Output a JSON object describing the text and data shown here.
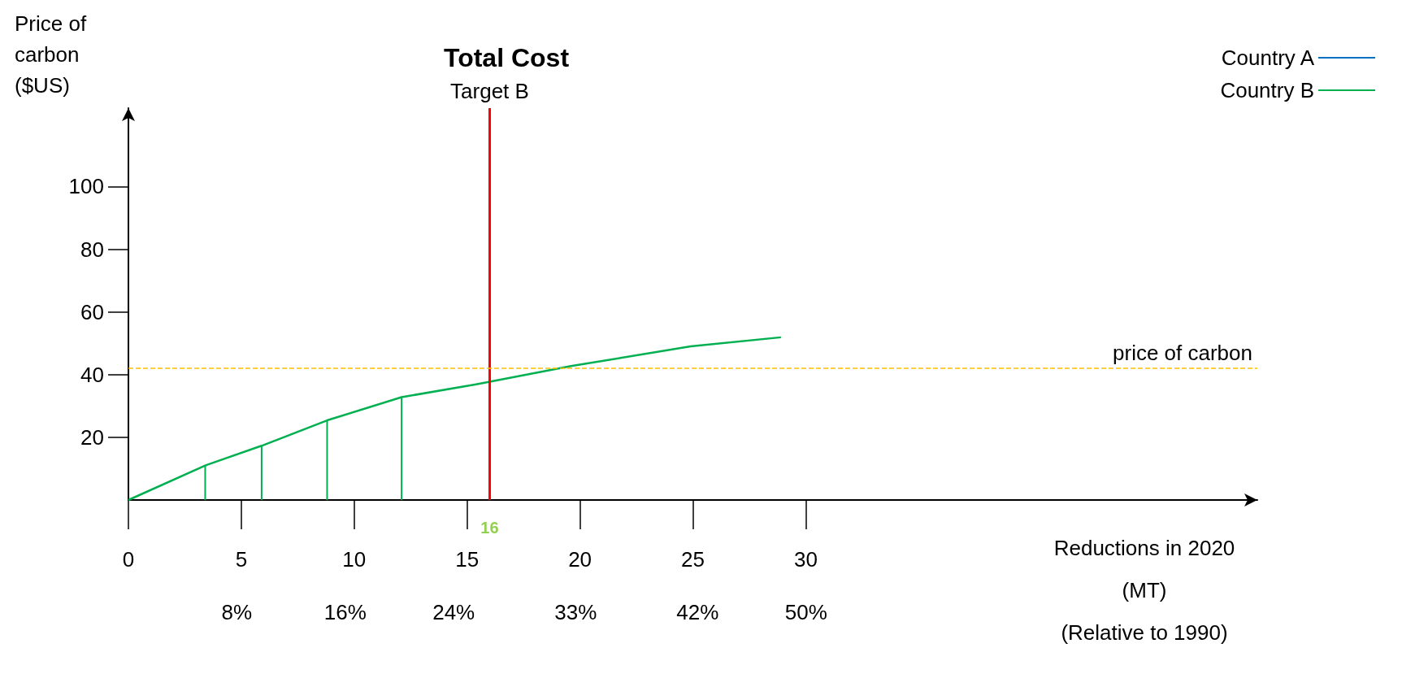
{
  "chart_data": {
    "type": "line",
    "title": "Total Cost",
    "xlabel": "Reductions in 2020\n(MT)\n(Relative to 1990)",
    "ylabel": "Price of\ncarbon\n($US)",
    "xlim": [
      0,
      50
    ],
    "xticks": [
      0,
      5,
      10,
      15,
      20,
      25,
      30
    ],
    "x2lim": [
      0,
      83.3
    ],
    "x2ticks": [
      {
        "value": 8,
        "label": "8%"
      },
      {
        "value": 16,
        "label": "16%"
      },
      {
        "value": 24,
        "label": "24%"
      },
      {
        "value": 33,
        "label": "33%"
      },
      {
        "value": 42,
        "label": "42%"
      },
      {
        "value": 50,
        "label": "50%"
      }
    ],
    "ylim": [
      0,
      125
    ],
    "yticks": [
      20,
      40,
      60,
      80,
      100
    ],
    "marker": "none",
    "legend": "top right",
    "series": [
      {
        "name": "Country A",
        "color": "#0070c0"
      },
      {
        "name": "Country B",
        "color": "#00b050",
        "x": [
          0,
          3.4,
          5.9,
          8.8,
          12.1,
          15.4,
          19.6,
          24.9,
          28.9
        ],
        "values": [
          0,
          11,
          17.3,
          25.4,
          32.8,
          36.9,
          42.7,
          49,
          51.9
        ]
      },
      {
        "type": "bar",
        "color": "#00b050",
        "x": [
          3.4,
          5.9,
          8.8,
          12.1
        ],
        "values": [
          11,
          17.3,
          25.4,
          32.8
        ]
      }
    ],
    "ref_lines": [
      {
        "axis": "x",
        "value": 16,
        "label": "Target B",
        "color": "#ff0000",
        "line_style": "solid"
      },
      {
        "axis": "y",
        "value": 42,
        "label": "price of carbon",
        "color": "#ffc000",
        "line_style": "dashed"
      }
    ],
    "annotations": [
      {
        "text": "16",
        "x": 16,
        "y": 0
      }
    ]
  }
}
